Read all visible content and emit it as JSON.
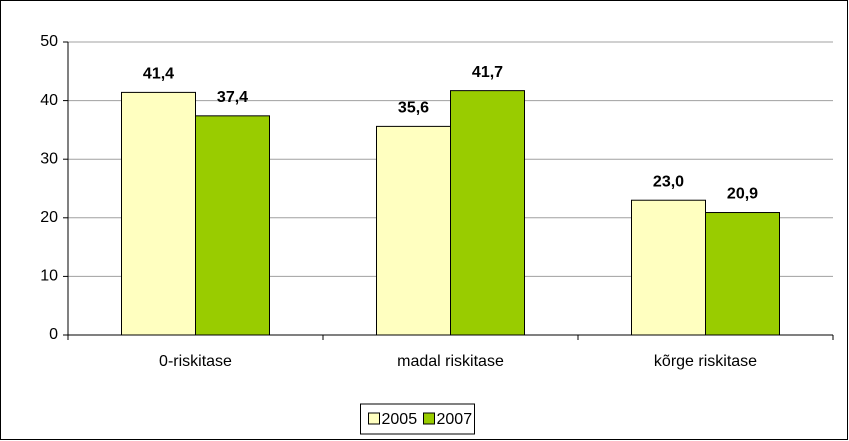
{
  "chart_data": {
    "type": "bar",
    "categories": [
      "0-riskitase",
      "madal riskitase",
      "kõrge riskitase"
    ],
    "series": [
      {
        "name": "2005",
        "color": "#ffffc0",
        "values": [
          41.4,
          35.6,
          23.0
        ],
        "value_labels": [
          "41,4",
          "35,6",
          "23,0"
        ]
      },
      {
        "name": "2007",
        "color": "#99cc00",
        "values": [
          37.4,
          41.7,
          20.9
        ],
        "value_labels": [
          "37,4",
          "41,7",
          "20,9"
        ]
      }
    ],
    "ylim": [
      0,
      50
    ],
    "yticks": [
      0,
      10,
      20,
      30,
      40,
      50
    ],
    "grid": true,
    "legend": "bottom"
  }
}
